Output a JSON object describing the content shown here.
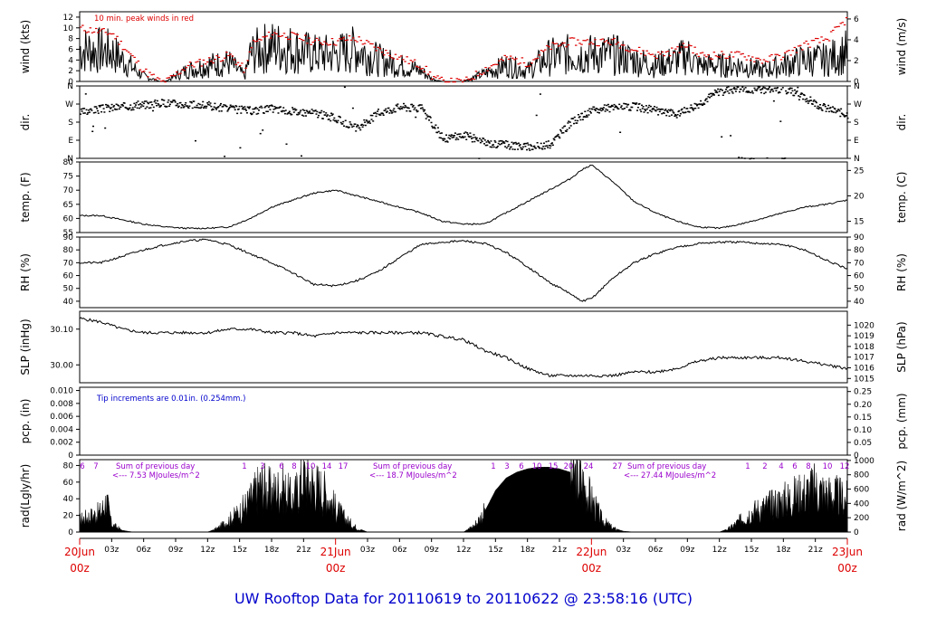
{
  "title": "UW Rooftop Data for 20110619  to  20110622 @ 23:58:16  (UTC)",
  "colors": {
    "title": "#0000cc",
    "red": "#dd0000",
    "purple": "#9a00cc",
    "note_blue": "#0000cc",
    "black": "#000000"
  },
  "time_axis": {
    "hour_ticks": [
      "03z",
      "06z",
      "09z",
      "12z",
      "15z",
      "18z",
      "21z",
      "03z",
      "06z",
      "09z",
      "12z",
      "15z",
      "18z",
      "21z",
      "03z",
      "06z",
      "09z",
      "12z",
      "15z",
      "18z",
      "21z"
    ],
    "day_labels": [
      {
        "date": "20Jun",
        "hour": "00z"
      },
      {
        "date": "21Jun",
        "hour": "00z"
      },
      {
        "date": "22Jun",
        "hour": "00z"
      },
      {
        "date": "23Jun",
        "hour": "00z"
      }
    ]
  },
  "chart_data": [
    {
      "id": "wind",
      "type": "line",
      "ylabel_left": "wind (kts)",
      "ylabel_right": "wind (m/s)",
      "left_ticks": [
        "0",
        "2",
        "4",
        "6",
        "8",
        "10",
        "12"
      ],
      "left_range": [
        0,
        13
      ],
      "right_ticks": [
        "0",
        "2",
        "4",
        "6"
      ],
      "right_range": [
        0,
        6.69
      ],
      "annotation": "10 min. peak winds in red",
      "series": [
        {
          "x_hours": [
            0,
            3,
            6,
            7.5,
            8,
            10,
            12,
            14,
            15.5,
            16,
            17,
            18,
            20,
            22,
            24,
            25,
            26,
            28,
            30,
            32,
            33,
            34,
            36,
            38,
            40,
            42,
            44,
            46,
            48,
            50,
            52,
            54,
            56,
            57,
            58,
            60,
            62,
            64,
            66,
            68,
            70,
            72
          ],
          "values": [
            6,
            5.5,
            1,
            0,
            0,
            2,
            3,
            3.5,
            1,
            5,
            6,
            6.5,
            6,
            5,
            5,
            5.5,
            6,
            4,
            3,
            2,
            0.5,
            0,
            0,
            1.5,
            3,
            2,
            4.5,
            5,
            5,
            5,
            4,
            3,
            4,
            5,
            3,
            3,
            3,
            2,
            3,
            4,
            4,
            5.5
          ],
          "name": "wind speed"
        },
        {
          "x_hours": [
            0,
            3,
            6,
            7.5,
            8,
            10,
            12,
            14,
            15.5,
            16,
            17,
            18,
            20,
            22,
            24,
            25,
            26,
            28,
            30,
            32,
            33,
            34,
            36,
            38,
            40,
            42,
            44,
            46,
            48,
            50,
            52,
            54,
            56,
            57,
            58,
            60,
            62,
            64,
            66,
            68,
            70,
            72
          ],
          "values": [
            10,
            9,
            2,
            0,
            0,
            3,
            4,
            5,
            2,
            7,
            8,
            9,
            8.5,
            7.5,
            7.5,
            8,
            8,
            6,
            4.5,
            3,
            1,
            0,
            0,
            2.5,
            4.5,
            3.5,
            6.5,
            7.5,
            7.5,
            7.5,
            6,
            5,
            6,
            7,
            5,
            5,
            5,
            4,
            5,
            7,
            8,
            12
          ],
          "name": "peak"
        }
      ]
    },
    {
      "id": "dir",
      "type": "scatter",
      "ylabel_left": "dir.",
      "ylabel_right": "dir.",
      "left_ticks": [
        "N",
        "E",
        "S",
        "W",
        "N"
      ],
      "right_ticks": [
        "N",
        "E",
        "S",
        "W",
        "N"
      ],
      "range": [
        0,
        360
      ],
      "x_hours": [
        0,
        2,
        4,
        6,
        8,
        10,
        12,
        14,
        16,
        18,
        20,
        22,
        24,
        26,
        28,
        30,
        32,
        34,
        36,
        38,
        40,
        42,
        44,
        46,
        48,
        50,
        52,
        54,
        56,
        58,
        60,
        62,
        64,
        66,
        68,
        70,
        72
      ],
      "values": [
        230,
        250,
        260,
        270,
        280,
        270,
        265,
        250,
        240,
        250,
        235,
        230,
        200,
        150,
        230,
        260,
        250,
        100,
        120,
        80,
        70,
        60,
        70,
        180,
        240,
        255,
        260,
        240,
        220,
        275,
        340,
        350,
        345,
        350,
        300,
        250,
        220
      ]
    },
    {
      "id": "temp",
      "type": "line",
      "ylabel_left": "temp. (F)",
      "ylabel_right": "temp. (C)",
      "left_ticks": [
        "55",
        "60",
        "65",
        "70",
        "75",
        "80"
      ],
      "left_range": [
        55,
        80
      ],
      "right_ticks": [
        "15",
        "20",
        "25"
      ],
      "right_range": [
        12.78,
        26.67
      ],
      "x_hours": [
        0,
        2,
        4,
        6,
        8,
        10,
        12,
        14,
        16,
        18,
        20,
        22,
        24,
        26,
        28,
        30,
        32,
        34,
        36,
        38,
        40,
        42,
        44,
        46,
        47,
        48,
        50,
        52,
        54,
        56,
        58,
        60,
        62,
        64,
        66,
        68,
        70,
        72
      ],
      "values": [
        61,
        61,
        59.5,
        58,
        57,
        56.5,
        56.5,
        57,
        60,
        64,
        66.5,
        69,
        70,
        68,
        66,
        64,
        62,
        59,
        58,
        58,
        62,
        66,
        70,
        74,
        77,
        79,
        73,
        66,
        62,
        59,
        57,
        56.5,
        58,
        60,
        62,
        64,
        65,
        66.5
      ]
    },
    {
      "id": "rh",
      "type": "line",
      "ylabel_left": "RH (%)",
      "ylabel_right": "RH (%)",
      "left_ticks": [
        "40",
        "50",
        "60",
        "70",
        "80",
        "90"
      ],
      "left_range": [
        35,
        90
      ],
      "right_ticks": [
        "40",
        "50",
        "60",
        "70",
        "80",
        "90"
      ],
      "x_hours": [
        0,
        2,
        4,
        6,
        8,
        10,
        12,
        14,
        16,
        18,
        20,
        22,
        24,
        26,
        28,
        30,
        32,
        34,
        36,
        38,
        40,
        42,
        44,
        46,
        47,
        48,
        50,
        52,
        54,
        56,
        58,
        60,
        62,
        64,
        66,
        68,
        70,
        72
      ],
      "values": [
        70,
        70,
        75,
        80,
        84,
        87,
        88,
        84,
        77,
        70,
        62,
        53,
        52,
        56,
        63,
        74,
        84,
        86,
        87,
        85,
        78,
        67,
        55,
        46,
        40,
        42,
        58,
        70,
        77,
        82,
        85,
        86,
        86,
        85,
        84,
        80,
        72,
        65
      ]
    },
    {
      "id": "slp",
      "type": "line",
      "ylabel_left": "SLP (inHg)",
      "ylabel_right": "SLP (hPa)",
      "left_ticks": [
        "30.00",
        "30.10"
      ],
      "left_range": [
        29.95,
        30.15
      ],
      "right_ticks": [
        "1015",
        "1016",
        "1017",
        "1018",
        "1019",
        "1020"
      ],
      "right_range": [
        1014.6,
        1021.3
      ],
      "x_hours": [
        0,
        2,
        4,
        6,
        8,
        10,
        12,
        14,
        16,
        18,
        20,
        22,
        24,
        26,
        28,
        30,
        32,
        34,
        36,
        38,
        40,
        42,
        44,
        46,
        48,
        50,
        52,
        54,
        56,
        58,
        60,
        62,
        64,
        66,
        68,
        70,
        72
      ],
      "values": [
        30.13,
        30.12,
        30.1,
        30.09,
        30.09,
        30.09,
        30.09,
        30.1,
        30.1,
        30.09,
        30.09,
        30.08,
        30.09,
        30.09,
        30.09,
        30.09,
        30.09,
        30.08,
        30.07,
        30.04,
        30.02,
        29.99,
        29.97,
        29.97,
        29.97,
        29.97,
        29.98,
        29.98,
        29.99,
        30.01,
        30.02,
        30.02,
        30.02,
        30.02,
        30.01,
        30.0,
        29.99
      ]
    },
    {
      "id": "pcp",
      "type": "line",
      "ylabel_left": "pcp. (in)",
      "ylabel_right": "pcp. (mm)",
      "left_ticks": [
        "0",
        "0.002",
        "0.004",
        "0.006",
        "0.008",
        "0.010"
      ],
      "left_range": [
        0,
        0.0105
      ],
      "right_ticks": [
        "0",
        "0.05",
        "0.10",
        "0.15",
        "0.20",
        "0.25"
      ],
      "right_range": [
        0,
        0.2667
      ],
      "annotation": "Tip increments are 0.01in. (0.254mm.)",
      "x_hours": [
        0,
        72
      ],
      "values": [
        0,
        0
      ]
    },
    {
      "id": "rad",
      "type": "area",
      "ylabel_left": "rad(Lgly/hr)",
      "ylabel_right": "rad (W/m^2)",
      "left_ticks": [
        "0",
        "20",
        "40",
        "60",
        "80"
      ],
      "left_range": [
        0,
        87
      ],
      "right_ticks": [
        "0",
        "200",
        "400",
        "600",
        "800",
        "1000"
      ],
      "right_range": [
        0,
        1011
      ],
      "x_hours": [
        0,
        0.5,
        1,
        1.5,
        2,
        2.5,
        3,
        4,
        5,
        12,
        13,
        14,
        15,
        16,
        17,
        18,
        19,
        20,
        21,
        22,
        23,
        24,
        25,
        26,
        27,
        36,
        37,
        38,
        39,
        40,
        41,
        42,
        43,
        44,
        45,
        46,
        47,
        48,
        49,
        50,
        51,
        52,
        60,
        61,
        62,
        63,
        64,
        65,
        66,
        67,
        68,
        69,
        70,
        71,
        72
      ],
      "values": [
        15,
        18,
        20,
        22,
        25,
        40,
        10,
        2,
        0,
        0,
        5,
        15,
        25,
        40,
        60,
        50,
        55,
        40,
        70,
        60,
        50,
        30,
        15,
        5,
        0,
        0,
        8,
        25,
        50,
        65,
        72,
        76,
        78,
        78,
        76,
        72,
        65,
        40,
        15,
        5,
        1,
        0,
        0,
        5,
        15,
        25,
        30,
        35,
        40,
        45,
        50,
        55,
        48,
        45,
        40
      ],
      "hour_marks_day1": [
        "6",
        "7",
        "1",
        "3",
        "6",
        "8",
        "10",
        "14",
        "17"
      ],
      "hour_marks_day2": [
        "1",
        "3",
        "6",
        "10",
        "15",
        "20",
        "24"
      ],
      "hour_marks_day3": [
        "27",
        "1",
        "2",
        "4",
        "6",
        "8",
        "10",
        "12"
      ],
      "sum_label": "Sum of previous day",
      "sums": [
        "<--- 7.53 MJoules/m^2",
        "<--- 18.7 MJoules/m^2",
        "<--- 27.44 MJoules/m^2"
      ]
    }
  ]
}
